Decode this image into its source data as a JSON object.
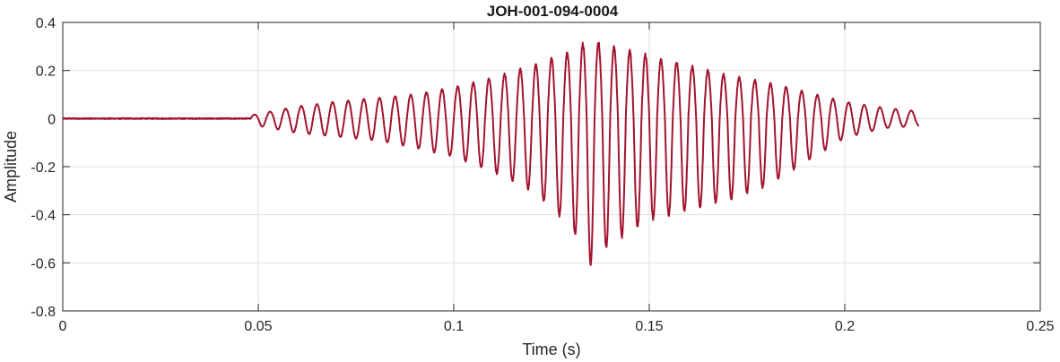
{
  "chart_data": {
    "type": "line",
    "title": "JOH-001-094-0004",
    "xlabel": "Time (s)",
    "ylabel": "Amplitude",
    "xlim": [
      0,
      0.25
    ],
    "ylim": [
      -0.8,
      0.4
    ],
    "grid": true,
    "xticks": [
      0,
      0.05,
      0.1,
      0.15,
      0.2,
      0.25
    ],
    "xtick_labels": [
      "0",
      "0.05",
      "0.1",
      "0.15",
      "0.2",
      "0.25"
    ],
    "yticks": [
      -0.8,
      -0.6,
      -0.4,
      -0.2,
      0,
      0.2,
      0.4
    ],
    "ytick_labels": [
      "-0.8",
      "-0.6",
      "-0.4",
      "-0.2",
      "0",
      "0.2",
      "0.4"
    ],
    "series": [
      {
        "color": "#A2142F",
        "x_range": [
          0,
          0.219
        ],
        "onset": 0.048,
        "envelope": [
          [
            0.0,
            0.002
          ],
          [
            0.045,
            0.003
          ],
          [
            0.05,
            0.02
          ],
          [
            0.06,
            0.05
          ],
          [
            0.07,
            0.07
          ],
          [
            0.08,
            0.085
          ],
          [
            0.09,
            0.1
          ],
          [
            0.1,
            0.13
          ],
          [
            0.11,
            0.17
          ],
          [
            0.12,
            0.22
          ],
          [
            0.13,
            0.28
          ],
          [
            0.135,
            0.33
          ],
          [
            0.14,
            0.3
          ],
          [
            0.15,
            0.26
          ],
          [
            0.16,
            0.22
          ],
          [
            0.17,
            0.18
          ],
          [
            0.18,
            0.15
          ],
          [
            0.19,
            0.11
          ],
          [
            0.2,
            0.07
          ],
          [
            0.21,
            0.045
          ],
          [
            0.219,
            0.03
          ]
        ],
        "negative_envelope": [
          [
            0.0,
            -0.002
          ],
          [
            0.045,
            -0.003
          ],
          [
            0.05,
            -0.03
          ],
          [
            0.06,
            -0.06
          ],
          [
            0.07,
            -0.075
          ],
          [
            0.08,
            -0.09
          ],
          [
            0.09,
            -0.12
          ],
          [
            0.1,
            -0.16
          ],
          [
            0.11,
            -0.22
          ],
          [
            0.12,
            -0.3
          ],
          [
            0.13,
            -0.45
          ],
          [
            0.135,
            -0.61
          ],
          [
            0.14,
            -0.52
          ],
          [
            0.15,
            -0.42
          ],
          [
            0.16,
            -0.38
          ],
          [
            0.17,
            -0.34
          ],
          [
            0.18,
            -0.28
          ],
          [
            0.19,
            -0.18
          ],
          [
            0.2,
            -0.08
          ],
          [
            0.21,
            -0.04
          ],
          [
            0.219,
            -0.03
          ]
        ],
        "frequency_hz": 250
      }
    ]
  }
}
